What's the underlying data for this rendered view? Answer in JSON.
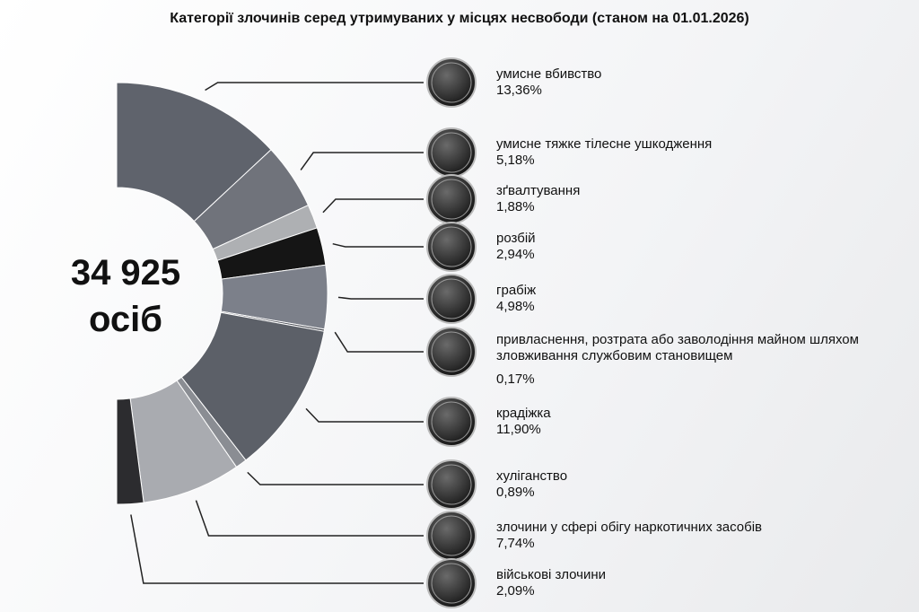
{
  "chart_data": {
    "type": "pie",
    "title": "Категорії злочинів серед утримуваних у місцях несвободи (станом на 01.01.2026)",
    "center_value": "34 925",
    "center_unit": "осіб",
    "categories": [
      "умисне вбивство",
      "умисне тяжке тілесне ушкодження",
      "зґвалтування",
      "розбій",
      "грабіж",
      "привласнення, розтрата або заволодіння майном шляхом зловживання службовим становищем",
      "крадіжка",
      "хуліганство",
      "злочини у сфері обігу наркотичних засобів",
      "військові злочини"
    ],
    "values": [
      13.36,
      5.18,
      1.88,
      2.94,
      4.98,
      0.17,
      11.9,
      0.89,
      7.74,
      2.09
    ],
    "value_labels": [
      "13,36%",
      "5,18%",
      "1,88%",
      "2,94%",
      "4,98%",
      "0,17%",
      "11,90%",
      "0,89%",
      "7,74%",
      "2,09%"
    ],
    "colors": [
      "#5f636c",
      "#70737b",
      "#aeb0b3",
      "#151515",
      "#7c808a",
      "#4a4d55",
      "#5c6068",
      "#8a8d93",
      "#a9abb0",
      "#2c2c2f"
    ]
  }
}
